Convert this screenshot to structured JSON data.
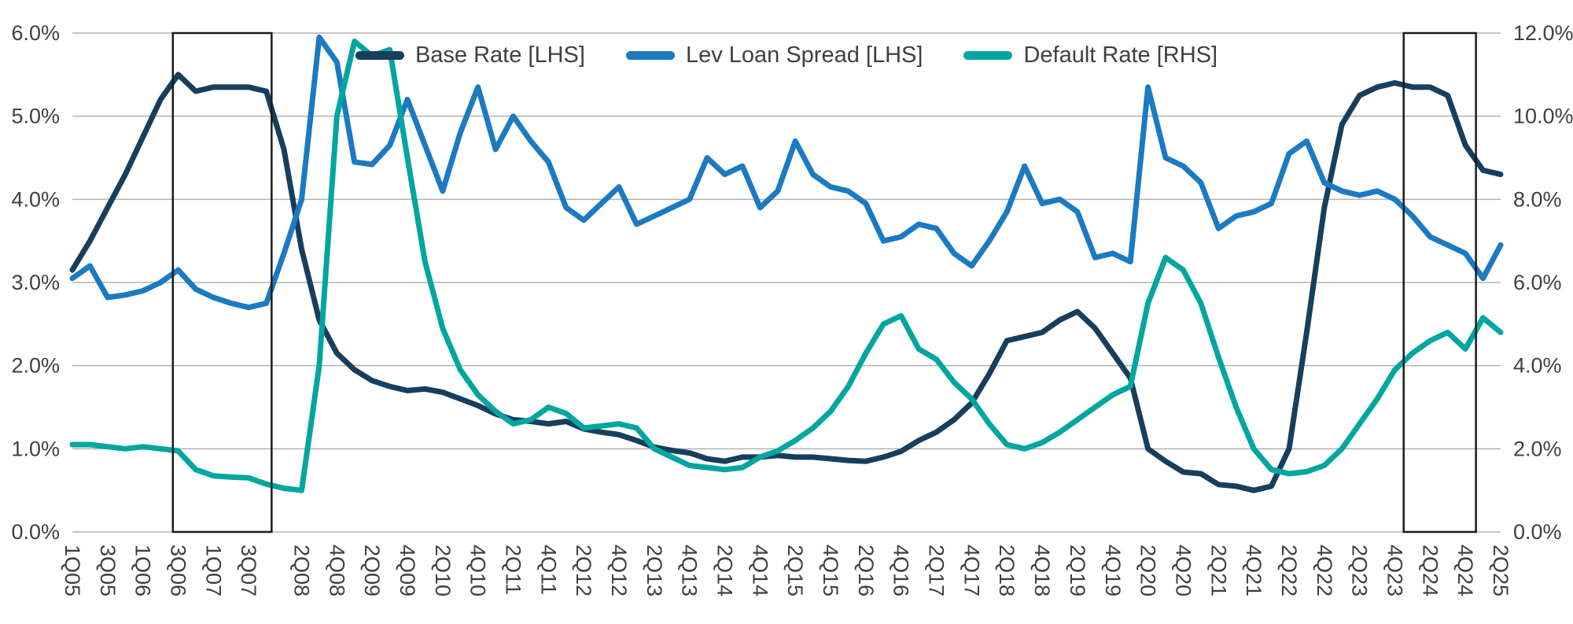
{
  "chart_data": {
    "type": "line",
    "title": "",
    "legend_position": "top-center",
    "grid": true,
    "style": {
      "grid_color": "#b3b3b3",
      "text_color": "#404040",
      "box_color": "#1a1a1a",
      "background": "#ffffff"
    },
    "left_axis": {
      "min": 0,
      "max": 6,
      "tick_values": [
        6,
        5,
        4,
        3,
        2,
        1,
        0
      ],
      "tick_labels": [
        "6.0%",
        "5.0%",
        "4.0%",
        "3.0%",
        "2.0%",
        "1.0%",
        "0.0%"
      ]
    },
    "right_axis": {
      "min": 0,
      "max": 12,
      "tick_values": [
        12,
        10,
        8,
        6,
        4,
        2,
        0
      ],
      "tick_labels": [
        "12.0%",
        "10.0%",
        "8.0%",
        "6.0%",
        "4.0%",
        "2.0%",
        "0.0%"
      ]
    },
    "x_axis": {
      "quarters": 82,
      "first": "1Q05",
      "last": "2Q25",
      "ticks": [
        {
          "label": "1Q05",
          "q": 0
        },
        {
          "label": "3Q05",
          "q": 2
        },
        {
          "label": "1Q06",
          "q": 4
        },
        {
          "label": "3Q06",
          "q": 6
        },
        {
          "label": "1Q07",
          "q": 8
        },
        {
          "label": "3Q07",
          "q": 10
        },
        {
          "label": "2Q08",
          "q": 13
        },
        {
          "label": "4Q08",
          "q": 15
        },
        {
          "label": "2Q09",
          "q": 17
        },
        {
          "label": "4Q09",
          "q": 19
        },
        {
          "label": "2Q10",
          "q": 21
        },
        {
          "label": "4Q10",
          "q": 23
        },
        {
          "label": "2Q11",
          "q": 25
        },
        {
          "label": "4Q11",
          "q": 27
        },
        {
          "label": "2Q12",
          "q": 29
        },
        {
          "label": "4Q12",
          "q": 31
        },
        {
          "label": "2Q13",
          "q": 33
        },
        {
          "label": "4Q13",
          "q": 35
        },
        {
          "label": "2Q14",
          "q": 37
        },
        {
          "label": "4Q14",
          "q": 39
        },
        {
          "label": "2Q15",
          "q": 41
        },
        {
          "label": "4Q15",
          "q": 43
        },
        {
          "label": "2Q16",
          "q": 45
        },
        {
          "label": "4Q16",
          "q": 47
        },
        {
          "label": "2Q17",
          "q": 49
        },
        {
          "label": "4Q17",
          "q": 51
        },
        {
          "label": "2Q18",
          "q": 53
        },
        {
          "label": "4Q18",
          "q": 55
        },
        {
          "label": "2Q19",
          "q": 57
        },
        {
          "label": "4Q19",
          "q": 59
        },
        {
          "label": "2Q20",
          "q": 61
        },
        {
          "label": "4Q20",
          "q": 63
        },
        {
          "label": "2Q21",
          "q": 65
        },
        {
          "label": "4Q21",
          "q": 67
        },
        {
          "label": "2Q22",
          "q": 69
        },
        {
          "label": "4Q22",
          "q": 71
        },
        {
          "label": "2Q23",
          "q": 73
        },
        {
          "label": "4Q23",
          "q": 75
        },
        {
          "label": "2Q24",
          "q": 77
        },
        {
          "label": "4Q24",
          "q": 79
        },
        {
          "label": "2Q25",
          "q": 81
        }
      ]
    },
    "series": [
      {
        "name": "Base Rate [LHS]",
        "axis": "left",
        "color": "#173E5D",
        "width": 7,
        "values": [
          3.15,
          3.5,
          3.9,
          4.3,
          4.75,
          5.2,
          5.5,
          5.3,
          5.35,
          5.35,
          5.35,
          5.3,
          4.6,
          3.4,
          2.55,
          2.15,
          1.95,
          1.82,
          1.75,
          1.7,
          1.72,
          1.68,
          1.6,
          1.52,
          1.42,
          1.35,
          1.33,
          1.3,
          1.33,
          1.24,
          1.2,
          1.17,
          1.1,
          1.02,
          0.98,
          0.95,
          0.88,
          0.85,
          0.9,
          0.9,
          0.92,
          0.9,
          0.9,
          0.88,
          0.86,
          0.85,
          0.9,
          0.97,
          1.1,
          1.2,
          1.35,
          1.55,
          1.9,
          2.3,
          2.35,
          2.4,
          2.55,
          2.65,
          2.45,
          2.15,
          1.85,
          1.0,
          0.85,
          0.72,
          0.7,
          0.57,
          0.55,
          0.5,
          0.55,
          1.0,
          2.4,
          3.9,
          4.9,
          5.25,
          5.35,
          5.4,
          5.35,
          5.35,
          5.25,
          4.65,
          4.35,
          4.3
        ]
      },
      {
        "name": "Lev Loan Spread [LHS]",
        "axis": "left",
        "color": "#1B7AC1",
        "width": 7,
        "values": [
          3.05,
          3.2,
          2.82,
          2.85,
          2.9,
          3.0,
          3.15,
          2.92,
          2.82,
          2.75,
          2.7,
          2.75,
          3.35,
          4.0,
          5.95,
          5.65,
          4.45,
          4.42,
          4.65,
          5.2,
          4.65,
          4.1,
          4.8,
          5.35,
          4.6,
          5.0,
          4.7,
          4.45,
          3.9,
          3.75,
          3.95,
          4.15,
          3.7,
          3.8,
          3.9,
          4.0,
          4.5,
          4.3,
          4.4,
          3.9,
          4.1,
          4.7,
          4.3,
          4.15,
          4.1,
          3.95,
          3.5,
          3.55,
          3.7,
          3.65,
          3.35,
          3.2,
          3.5,
          3.85,
          4.4,
          3.95,
          4.0,
          3.85,
          3.3,
          3.35,
          3.25,
          5.35,
          4.5,
          4.4,
          4.2,
          3.65,
          3.8,
          3.85,
          3.95,
          4.55,
          4.7,
          4.2,
          4.1,
          4.05,
          4.1,
          4.0,
          3.8,
          3.55,
          3.45,
          3.35,
          3.05,
          3.45
        ]
      },
      {
        "name": "Default Rate [RHS]",
        "axis": "right",
        "color": "#00A69F",
        "width": 7,
        "values": [
          2.1,
          2.1,
          2.05,
          2.0,
          2.05,
          2.0,
          1.95,
          1.5,
          1.35,
          1.32,
          1.3,
          1.15,
          1.05,
          1.0,
          4.0,
          10.0,
          11.8,
          11.45,
          11.6,
          9.0,
          6.5,
          4.9,
          3.9,
          3.3,
          2.9,
          2.6,
          2.7,
          3.0,
          2.85,
          2.5,
          2.55,
          2.6,
          2.5,
          2.0,
          1.8,
          1.6,
          1.55,
          1.5,
          1.55,
          1.8,
          1.95,
          2.2,
          2.5,
          2.9,
          3.5,
          4.3,
          5.0,
          5.2,
          4.4,
          4.15,
          3.6,
          3.2,
          2.6,
          2.1,
          2.0,
          2.15,
          2.4,
          2.7,
          3.0,
          3.3,
          3.5,
          5.5,
          6.6,
          6.3,
          5.5,
          4.2,
          3.0,
          2.0,
          1.5,
          1.4,
          1.45,
          1.6,
          2.0,
          2.6,
          3.2,
          3.9,
          4.3,
          4.6,
          4.8,
          4.4,
          5.15,
          4.8
        ]
      }
    ],
    "highlight_boxes": [
      {
        "name": "highlight-2006-2007",
        "from_q": 5.7,
        "to_q": 11.3
      },
      {
        "name": "highlight-2024-2025",
        "from_q": 75.5,
        "to_q": 79.6
      }
    ]
  }
}
